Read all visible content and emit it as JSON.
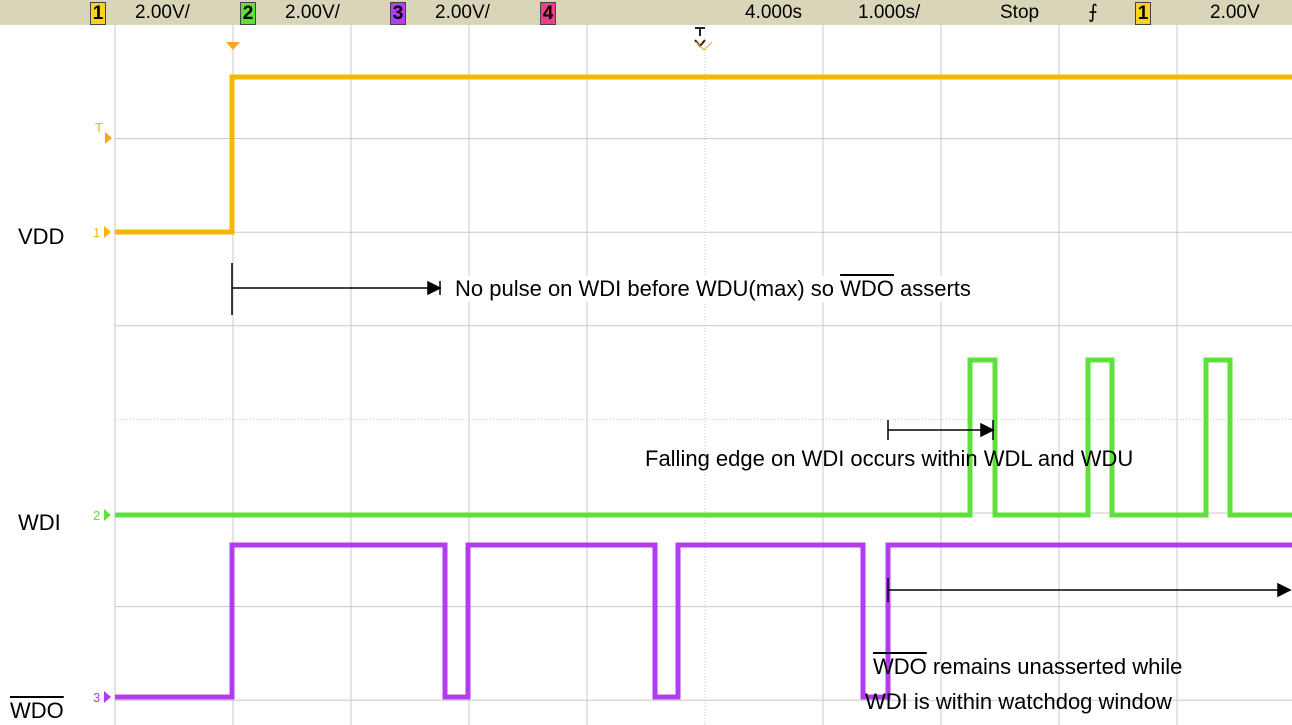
{
  "header": {
    "ch1_num": "1",
    "ch1_scale": "2.00V/",
    "ch2_num": "2",
    "ch2_scale": "2.00V/",
    "ch3_num": "3",
    "ch3_scale": "2.00V/",
    "ch4_num": "4",
    "time_delay": "4.000s",
    "time_scale": "1.000s/",
    "run_state": "Stop",
    "trigger_source": "1",
    "trigger_level": "2.00V"
  },
  "markers": {
    "trigger": "T",
    "ch1": "1",
    "ch2": "2",
    "ch3": "3"
  },
  "labels": {
    "vdd": "VDD",
    "wdi": "WDI",
    "wdo": "WDO"
  },
  "annotations": {
    "no_pulse": {
      "before": "No pulse on WDI before WDU(max) so ",
      "overlined": "WDO",
      "after": " asserts"
    },
    "falling_edge": "Falling edge on WDI occurs within WDL and WDU",
    "remains": {
      "overlined": "WDO",
      "line1_rest": " remains unasserted while",
      "line2": "WDI is within watchdog window"
    }
  }
}
